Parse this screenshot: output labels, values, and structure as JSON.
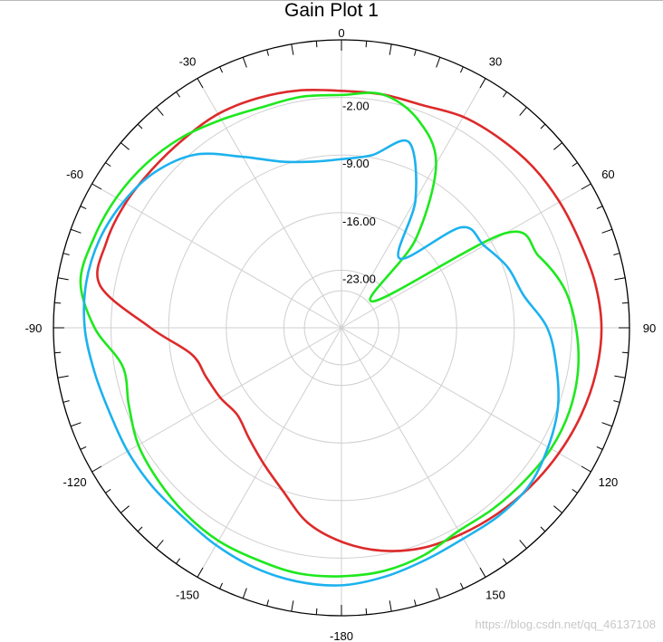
{
  "chart_data": {
    "type": "polar-line",
    "title": "Gain Plot 1",
    "angle_ticks": [
      "0",
      "30",
      "60",
      "90",
      "120",
      "150",
      "-180",
      "-150",
      "-120",
      "-90",
      "-60",
      "-30"
    ],
    "radial_ticks": [
      "-2.00",
      "-9.00",
      "-16.00",
      "-23.00"
    ],
    "r_range": [
      -30,
      5
    ],
    "angles": [
      0,
      10,
      20,
      30,
      40,
      50,
      60,
      70,
      80,
      90,
      100,
      110,
      120,
      130,
      140,
      150,
      160,
      170,
      180,
      190,
      200,
      210,
      220,
      230,
      240,
      250,
      260,
      270,
      280,
      290,
      300,
      310,
      320,
      330,
      340,
      350
    ],
    "series": [
      {
        "color": "#dd2a2a",
        "values": [
          -1.2,
          -1.2,
          -1.2,
          -0.4,
          0.0,
          0.4,
          0.6,
          0.8,
          1.3,
          1.6,
          1.4,
          1.0,
          0.5,
          0.0,
          -0.5,
          -1.0,
          -1.5,
          -2.5,
          -4.0,
          -6.0,
          -9.0,
          -11.0,
          -12.5,
          -13.5,
          -13.0,
          -12.5,
          -11.5,
          -6.8,
          -0.2,
          0.4,
          0.3,
          0.0,
          -0.1,
          0.0,
          -0.3,
          -0.7
        ]
      },
      {
        "color": "#1ee81e",
        "values": [
          -1.7,
          -1.2,
          -3.0,
          -7.0,
          -16.0,
          -25.0,
          -7.0,
          -4.5,
          -2.5,
          -1.5,
          -0.8,
          -0.5,
          -0.6,
          -1.0,
          -1.3,
          -1.5,
          -0.6,
          0.0,
          0.2,
          0.3,
          0.0,
          -0.1,
          -0.5,
          -1.0,
          -1.5,
          -2.5,
          -3.0,
          0.0,
          2.2,
          2.0,
          1.6,
          1.0,
          0.2,
          -0.8,
          -1.5,
          -1.5
        ]
      },
      {
        "color": "#1cb2ee",
        "values": [
          -9.5,
          -8.7,
          -6.0,
          -12.0,
          -19.0,
          -11.0,
          -10.0,
          -8.5,
          -7.5,
          -5.0,
          -3.5,
          -2.0,
          -1.0,
          -0.2,
          -0.2,
          -0.4,
          0.0,
          0.7,
          1.3,
          1.3,
          1.0,
          0.5,
          0.0,
          0.0,
          0.0,
          0.0,
          0.5,
          1.2,
          1.5,
          1.3,
          0.6,
          -0.5,
          -2.5,
          -6.0,
          -8.5,
          -9.5
        ]
      }
    ]
  },
  "watermark": "https://blog.csdn.net/qq_46137108"
}
